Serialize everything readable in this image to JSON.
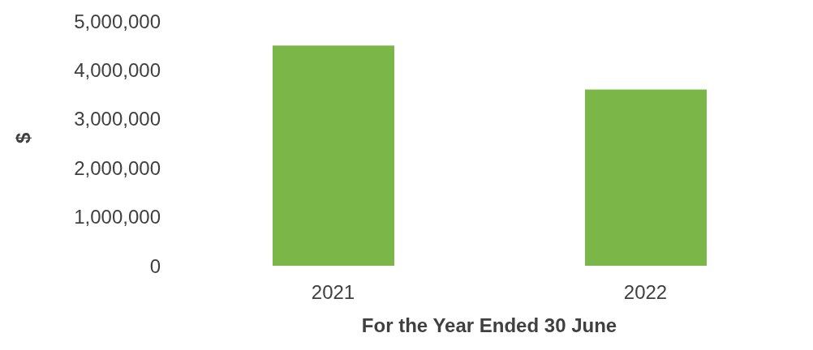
{
  "chart_data": {
    "type": "bar",
    "xlabel": "For the Year Ended 30 June",
    "ylabel": "$",
    "categories": [
      "2021",
      "2022"
    ],
    "values": [
      4500000,
      3600000
    ],
    "color": "#7ab648",
    "ylim": [
      0,
      5000000
    ],
    "yticks": [
      {
        "value": 0,
        "label": "0"
      },
      {
        "value": 1000000,
        "label": "1,000,000"
      },
      {
        "value": 2000000,
        "label": "2,000,000"
      },
      {
        "value": 3000000,
        "label": "3,000,000"
      },
      {
        "value": 4000000,
        "label": "4,000,000"
      },
      {
        "value": 5000000,
        "label": "5,000,000"
      }
    ],
    "grid": false
  }
}
